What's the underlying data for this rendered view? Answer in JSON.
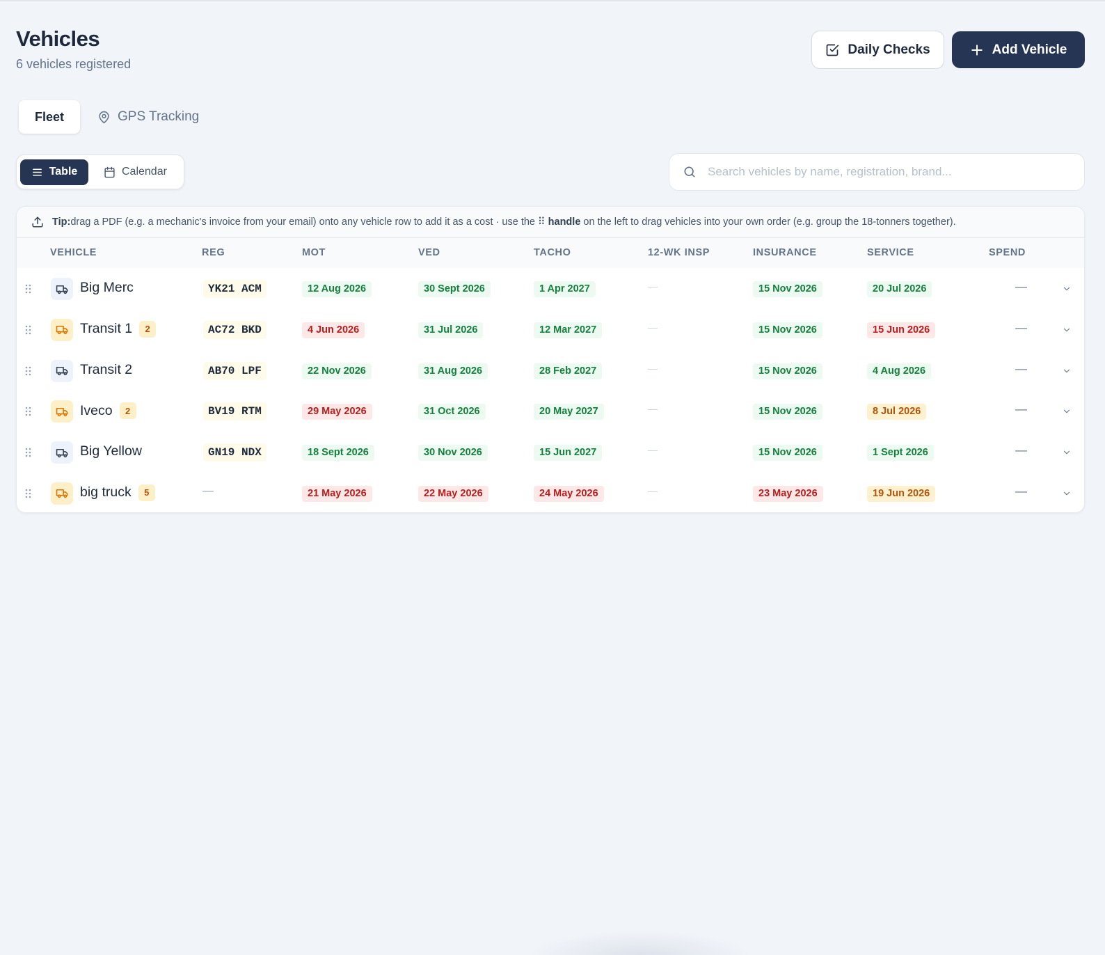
{
  "header": {
    "title": "Vehicles",
    "subtitle": "6 vehicles registered"
  },
  "actions": {
    "daily_checks": "Daily Checks",
    "add_vehicle": "Add Vehicle"
  },
  "tabs": [
    {
      "label": "Fleet",
      "active": true
    },
    {
      "label": "GPS Tracking",
      "active": false
    }
  ],
  "view_toggle": {
    "table": "Table",
    "calendar": "Calendar",
    "selected": "Table"
  },
  "search": {
    "placeholder": "Search vehicles by name, registration, brand..."
  },
  "tip": {
    "label": "Tip:",
    "text1": "drag a PDF (e.g. a mechanic's invoice from your email) onto any vehicle row to add it as a cost · use the ⠿",
    "handle": "handle",
    "text2": "on the left to drag vehicles into your own order (e.g. group the 18-tonners together)."
  },
  "columns": [
    "VEHICLE",
    "REG",
    "MOT",
    "VED",
    "TACHO",
    "12-WK INSP",
    "INSURANCE",
    "SERVICE",
    "SPEND"
  ],
  "colors": {
    "primary": "#263553",
    "green_bg": "#ecfaf1",
    "green_text": "#15803d",
    "red_bg": "#fde8e8",
    "red_text": "#b91c1c",
    "amber_bg": "#fdf1cf",
    "amber_text": "#b45309"
  },
  "vehicles": [
    {
      "name": "Big Merc",
      "icon": "truck-icon",
      "icon_tone": "blue",
      "count": null,
      "reg": "YK21 ACM",
      "mot": {
        "text": "12 Aug 2026",
        "status": "green"
      },
      "ved": {
        "text": "30 Sept 2026",
        "status": "green"
      },
      "tacho": {
        "text": "1 Apr 2027",
        "status": "green"
      },
      "insp": "—",
      "insurance": {
        "text": "15 Nov 2026",
        "status": "green"
      },
      "service": {
        "text": "20 Jul 2026",
        "status": "green"
      },
      "spend": "—"
    },
    {
      "name": "Transit 1",
      "icon": "truck-icon",
      "icon_tone": "amber",
      "count": "2",
      "reg": "AC72 BKD",
      "mot": {
        "text": "4 Jun 2026",
        "status": "red"
      },
      "ved": {
        "text": "31 Jul 2026",
        "status": "green"
      },
      "tacho": {
        "text": "12 Mar 2027",
        "status": "green"
      },
      "insp": "—",
      "insurance": {
        "text": "15 Nov 2026",
        "status": "green"
      },
      "service": {
        "text": "15 Jun 2026",
        "status": "red"
      },
      "spend": "—"
    },
    {
      "name": "Transit 2",
      "icon": "truck-icon",
      "icon_tone": "blue",
      "count": null,
      "reg": "AB70 LPF",
      "mot": {
        "text": "22 Nov 2026",
        "status": "green"
      },
      "ved": {
        "text": "31 Aug 2026",
        "status": "green"
      },
      "tacho": {
        "text": "28 Feb 2027",
        "status": "green"
      },
      "insp": "—",
      "insurance": {
        "text": "15 Nov 2026",
        "status": "green"
      },
      "service": {
        "text": "4 Aug 2026",
        "status": "green"
      },
      "spend": "—"
    },
    {
      "name": "Iveco",
      "icon": "truck-icon",
      "icon_tone": "amber",
      "count": "2",
      "reg": "BV19 RTM",
      "mot": {
        "text": "29 May 2026",
        "status": "red"
      },
      "ved": {
        "text": "31 Oct 2026",
        "status": "green"
      },
      "tacho": {
        "text": "20 May 2027",
        "status": "green"
      },
      "insp": "—",
      "insurance": {
        "text": "15 Nov 2026",
        "status": "green"
      },
      "service": {
        "text": "8 Jul 2026",
        "status": "amber"
      },
      "spend": "—"
    },
    {
      "name": "Big Yellow",
      "icon": "truck-icon",
      "icon_tone": "blue",
      "count": null,
      "reg": "GN19 NDX",
      "mot": {
        "text": "18 Sept 2026",
        "status": "green"
      },
      "ved": {
        "text": "30 Nov 2026",
        "status": "green"
      },
      "tacho": {
        "text": "15 Jun 2027",
        "status": "green"
      },
      "insp": "—",
      "insurance": {
        "text": "15 Nov 2026",
        "status": "green"
      },
      "service": {
        "text": "1 Sept 2026",
        "status": "green"
      },
      "spend": "—"
    },
    {
      "name": "big truck",
      "icon": "truck-icon",
      "icon_tone": "amber",
      "count": "5",
      "reg": "—",
      "mot": {
        "text": "21 May 2026",
        "status": "red"
      },
      "ved": {
        "text": "22 May 2026",
        "status": "red"
      },
      "tacho": {
        "text": "24 May 2026",
        "status": "red"
      },
      "insp": "—",
      "insurance": {
        "text": "23 May 2026",
        "status": "red"
      },
      "service": {
        "text": "19 Jun 2026",
        "status": "amber"
      },
      "spend": "—"
    }
  ]
}
